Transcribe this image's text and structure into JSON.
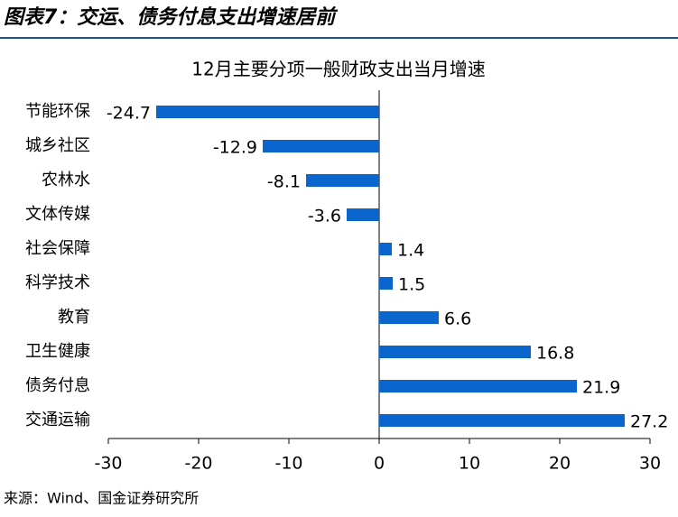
{
  "header": {
    "title": "图表7：交运、债务付息支出增速居前"
  },
  "chart_data": {
    "type": "bar",
    "orientation": "horizontal",
    "title": "12月主要分项一般财政支出当月增速",
    "categories": [
      "节能环保",
      "城乡社区",
      "农林水",
      "文体传媒",
      "社会保障",
      "科学技术",
      "教育",
      "卫生健康",
      "债务付息",
      "交通运输"
    ],
    "values": [
      -24.7,
      -12.9,
      -8.1,
      -3.6,
      1.4,
      1.5,
      6.6,
      16.8,
      21.9,
      27.2
    ],
    "color": "#0a66cc",
    "xlim": [
      -30,
      30
    ],
    "xticks": [
      -30,
      -20,
      -10,
      0,
      10,
      20,
      30
    ]
  },
  "source": "来源：Wind、国金证券研究所"
}
